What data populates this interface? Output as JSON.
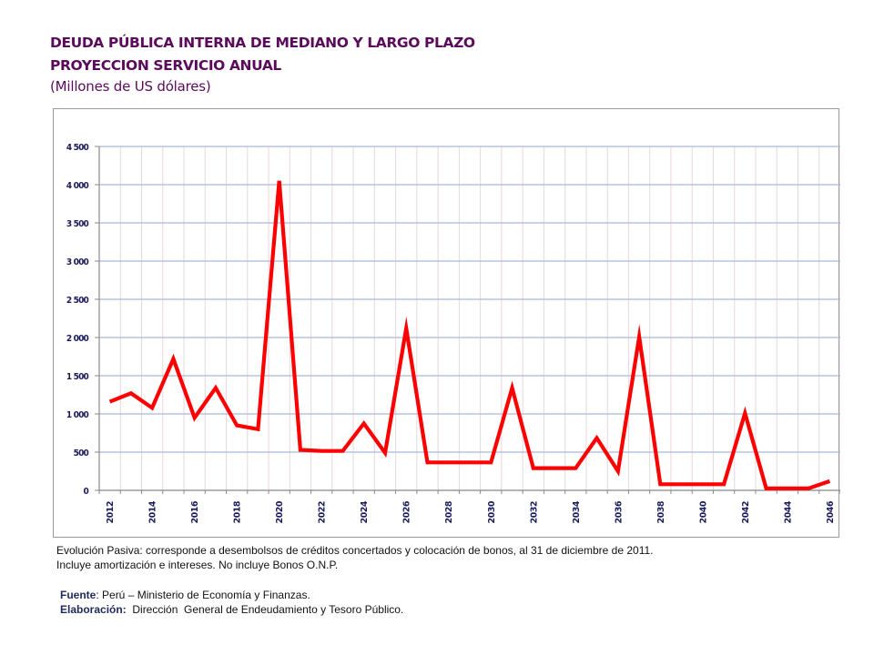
{
  "header": {
    "title_line1": "DEUDA  PÚBLICA  INTERNA DE MEDIANO Y LARGO PLAZO",
    "title_line2": "PROYECCION SERVICIO ANUAL",
    "units": "(Millones de US dólares)"
  },
  "footer": {
    "note_line1": "Evolución Pasiva: corresponde a desembolsos de créditos concertados y colocación de bonos, al 31 de diciembre de 2011.",
    "note_line2": "Incluye amortización e intereses. No incluye Bonos O.N.P.",
    "source_label": "Fuente",
    "source_text": ": Perú – Ministerio de Economía y Finanzas.",
    "elab_label": "Elaboración:",
    "elab_text": "  Dirección  General de Endeudamiento y Tesoro Público."
  },
  "colors": {
    "line": "#ff0000",
    "title": "#5b0b5b",
    "h_grid": "#a9b8d8",
    "v_grid": "#ead6de",
    "axis_label": "#1a1a5e"
  },
  "chart_data": {
    "type": "line",
    "title": "DEUDA PÚBLICA INTERNA DE MEDIANO Y LARGO PLAZO - PROYECCION SERVICIO ANUAL",
    "xlabel": "",
    "ylabel": "Millones de US dólares",
    "ylim": [
      0,
      4500
    ],
    "y_ticks": [
      0,
      500,
      1000,
      1500,
      2000,
      2500,
      3000,
      3500,
      4000,
      4500
    ],
    "y_tick_labels": [
      "0",
      "500",
      "1 000",
      "1 500",
      "2 000",
      "2 500",
      "3 000",
      "3 500",
      "4 000",
      "4 500"
    ],
    "x_tick_labels": [
      "2012",
      "2014",
      "2016",
      "2018",
      "2020",
      "2022",
      "2024",
      "2026",
      "2028",
      "2030",
      "2032",
      "2034",
      "2036",
      "2038",
      "2040",
      "2042",
      "2044",
      "2046"
    ],
    "grid": true,
    "legend": "none",
    "x": [
      2012,
      2013,
      2014,
      2015,
      2016,
      2017,
      2018,
      2019,
      2020,
      2021,
      2022,
      2023,
      2024,
      2025,
      2026,
      2027,
      2028,
      2029,
      2030,
      2031,
      2032,
      2033,
      2034,
      2035,
      2036,
      2037,
      2038,
      2039,
      2040,
      2041,
      2042,
      2043,
      2044,
      2045,
      2046
    ],
    "series": [
      {
        "name": "Servicio anual",
        "values": [
          1160,
          1270,
          1080,
          1720,
          950,
          1340,
          850,
          800,
          4050,
          530,
          515,
          515,
          875,
          490,
          2120,
          365,
          365,
          365,
          365,
          1340,
          290,
          290,
          290,
          685,
          250,
          2010,
          80,
          80,
          80,
          80,
          1010,
          25,
          25,
          25,
          120
        ]
      }
    ]
  }
}
